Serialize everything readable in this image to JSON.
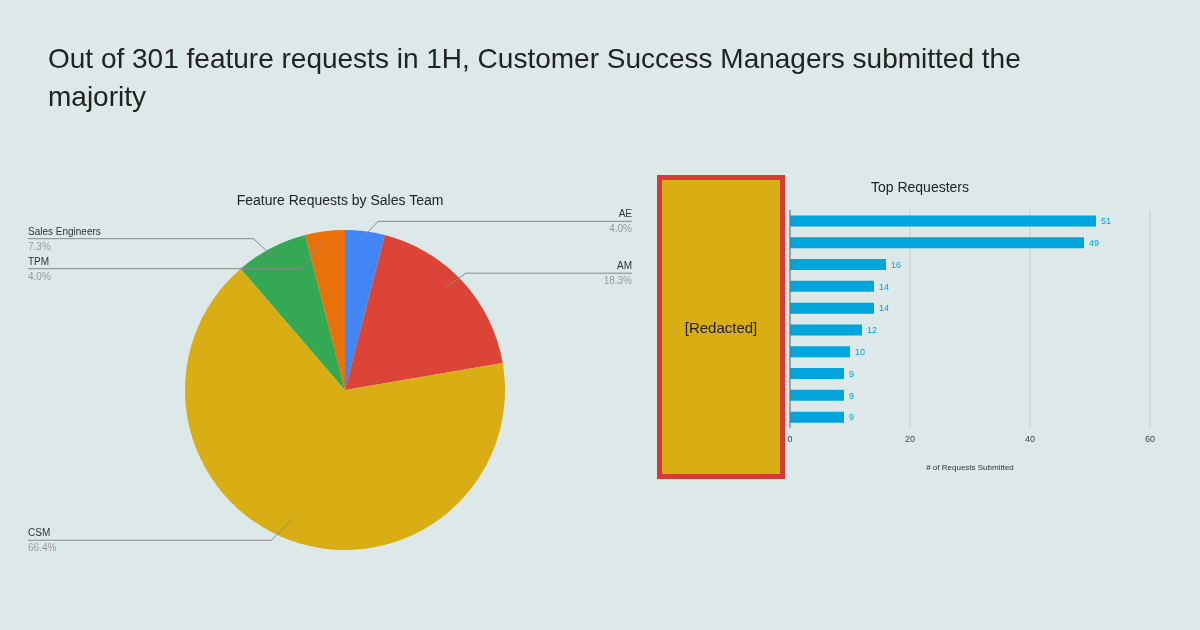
{
  "chart_data": [
    {
      "type": "other",
      "title": "Out of 301 feature requests in 1H, Customer Success Managers submitted the majority"
    },
    {
      "type": "pie",
      "title": "Feature Requests by Sales Team",
      "categories": [
        "AE",
        "AM",
        "CSM",
        "Sales Engineers",
        "TPM"
      ],
      "values": [
        4.0,
        18.3,
        66.4,
        7.3,
        4.0
      ],
      "value_labels": [
        "4.0%",
        "18.3%",
        "66.4%",
        "7.3%",
        "4.0%"
      ],
      "colors": [
        "#4285f4",
        "#db4437",
        "#d9ae14",
        "#34a853",
        "#e8710a"
      ],
      "legend": false
    },
    {
      "type": "bar",
      "orientation": "horizontal",
      "title": "Top Requesters",
      "xlabel": "# of Requests Submitted",
      "categories": [
        null,
        null,
        null,
        null,
        null,
        null,
        null,
        null,
        null,
        null
      ],
      "values": [
        51,
        49,
        16,
        14,
        14,
        12,
        10,
        9,
        9,
        9
      ],
      "color": "#00a5dc",
      "xlim": [
        0,
        60
      ],
      "xticks": [
        0,
        20,
        40,
        60
      ],
      "grid": "x",
      "data_labels": true,
      "legend": false,
      "annotations": [
        "[Redacted]"
      ]
    }
  ]
}
